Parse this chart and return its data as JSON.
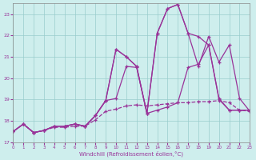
{
  "xlabel": "Windchill (Refroidissement éolien,°C)",
  "background_color": "#ceeeed",
  "line_color": "#993399",
  "grid_color": "#99cccc",
  "xmin": 0,
  "xmax": 23,
  "ymin": 17,
  "ymax": 23.5,
  "yticks": [
    17,
    18,
    19,
    20,
    21,
    22,
    23
  ],
  "xticks": [
    0,
    1,
    2,
    3,
    4,
    5,
    6,
    7,
    8,
    9,
    10,
    11,
    12,
    13,
    14,
    15,
    16,
    17,
    18,
    19,
    20,
    21,
    22,
    23
  ],
  "line_jagged_x": [
    0,
    1,
    2,
    3,
    4,
    5,
    6,
    7,
    8,
    9,
    10,
    11,
    12,
    13,
    14,
    15,
    16,
    17,
    18,
    19,
    20,
    21,
    22,
    23
  ],
  "line_jagged_y": [
    17.5,
    17.85,
    17.45,
    17.55,
    17.75,
    17.75,
    17.85,
    17.75,
    18.25,
    18.95,
    21.35,
    21.0,
    20.55,
    18.35,
    22.1,
    23.25,
    23.45,
    22.1,
    20.55,
    21.95,
    20.75,
    21.55,
    19.05,
    18.45
  ],
  "line_smooth1_x": [
    0,
    1,
    2,
    3,
    4,
    5,
    6,
    7,
    8,
    9,
    10,
    11,
    12,
    13,
    14,
    15,
    16,
    17,
    18,
    19,
    20,
    21,
    22,
    23
  ],
  "line_smooth1_y": [
    17.5,
    17.85,
    17.45,
    17.55,
    17.75,
    17.75,
    17.85,
    17.75,
    18.25,
    18.95,
    19.05,
    20.55,
    20.5,
    18.35,
    18.5,
    18.65,
    18.85,
    20.5,
    20.65,
    21.55,
    19.0,
    18.5,
    18.5,
    18.5
  ],
  "line_smooth2_x": [
    0,
    1,
    2,
    3,
    4,
    5,
    6,
    7,
    8,
    9,
    10,
    11,
    12,
    13,
    14,
    15,
    16,
    17,
    18,
    19,
    20,
    21,
    22,
    23
  ],
  "line_smooth2_y": [
    17.5,
    17.85,
    17.45,
    17.55,
    17.75,
    17.75,
    17.85,
    17.75,
    18.25,
    18.95,
    21.35,
    21.0,
    20.55,
    18.35,
    22.1,
    23.25,
    23.45,
    22.1,
    21.95,
    21.55,
    19.05,
    18.5,
    18.5,
    18.5
  ],
  "line_flat_x": [
    0,
    1,
    2,
    3,
    4,
    5,
    6,
    7,
    8,
    9,
    10,
    11,
    12,
    13,
    14,
    15,
    16,
    17,
    18,
    19,
    20,
    21,
    22,
    23
  ],
  "line_flat_y": [
    17.5,
    17.85,
    17.45,
    17.55,
    17.7,
    17.7,
    17.75,
    17.75,
    18.05,
    18.45,
    18.55,
    18.7,
    18.75,
    18.7,
    18.75,
    18.8,
    18.85,
    18.85,
    18.9,
    18.9,
    18.95,
    18.85,
    18.5,
    18.45
  ]
}
